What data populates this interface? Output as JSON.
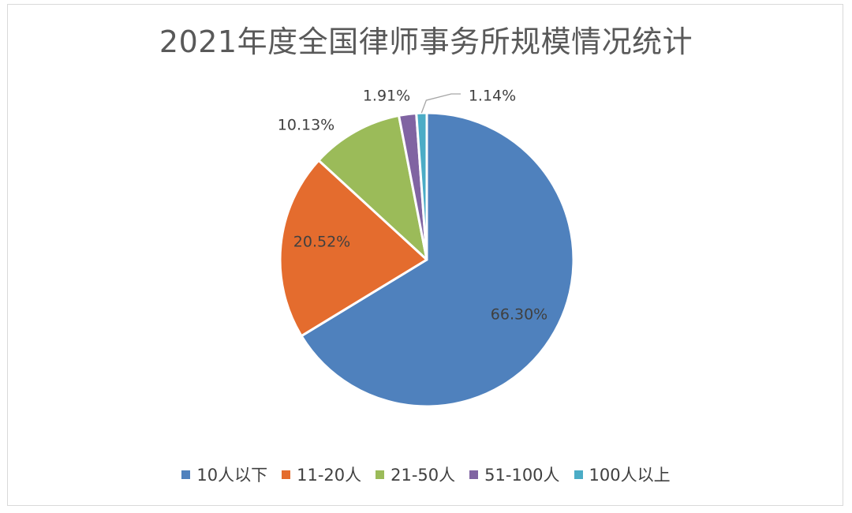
{
  "chart_data": {
    "type": "pie",
    "title": "2021年度全国律师事务所规模情况统计",
    "categories": [
      "10人以下",
      "11-20人",
      "21-50人",
      "51-100人",
      "100人以上"
    ],
    "values": [
      66.3,
      20.52,
      10.13,
      1.91,
      1.14
    ],
    "labels": [
      "66.30%",
      "20.52%",
      "10.13%",
      "1.91%",
      "1.14%"
    ],
    "colors": [
      "#4f81bd",
      "#e46c2e",
      "#9bbb59",
      "#8064a2",
      "#4bacc6"
    ],
    "legend_position": "bottom",
    "start_angle_deg": 0,
    "direction": "clockwise"
  }
}
